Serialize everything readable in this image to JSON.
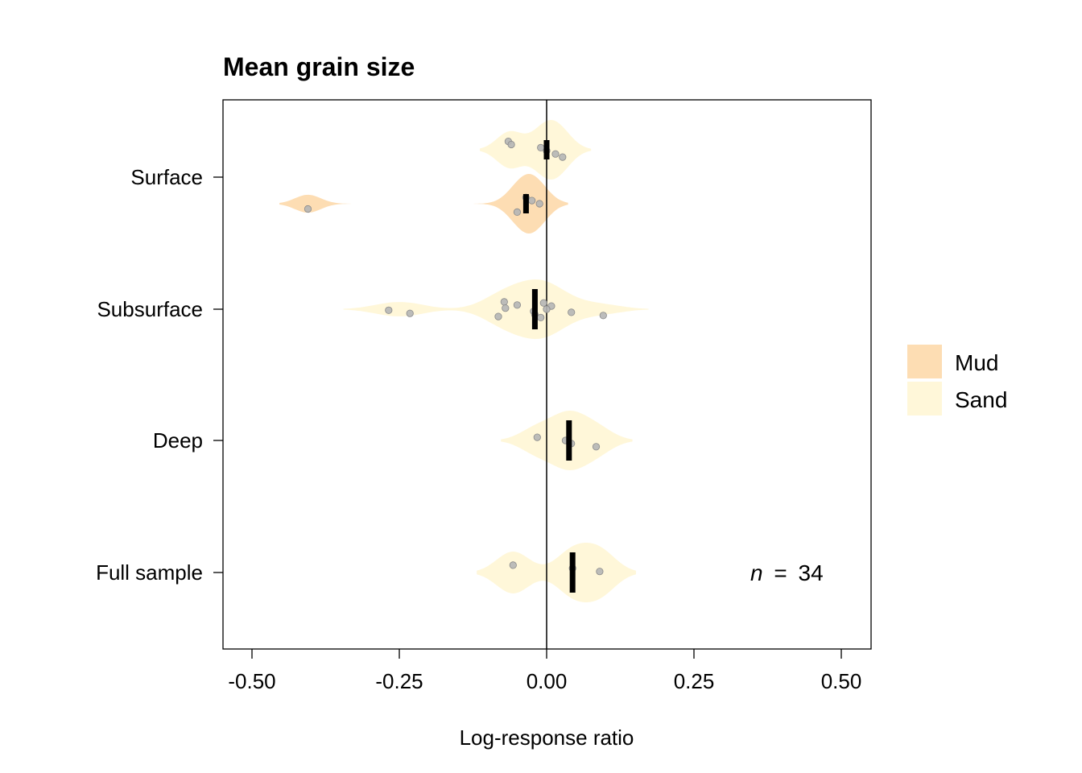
{
  "chart_data": {
    "type": "violin",
    "title": "Mean grain size",
    "xlabel": "Log-response ratio",
    "ylabel": "",
    "xlim": [
      -0.55,
      0.55
    ],
    "xticks": [
      -0.5,
      -0.25,
      0.0,
      0.25,
      0.5
    ],
    "xtick_labels": [
      "-0.50",
      "-0.25",
      "0.00",
      "0.25",
      "0.50"
    ],
    "categories": [
      "Surface",
      "Subsurface",
      "Deep",
      "Full sample"
    ],
    "legend": {
      "position": "right",
      "items": [
        {
          "name": "Mud",
          "color": "#FDDDB3"
        },
        {
          "name": "Sand",
          "color": "#FFF7D9"
        }
      ]
    },
    "annotation": {
      "italic": "n",
      "eq": "=",
      "value": "34"
    },
    "groups": [
      {
        "category": "Surface",
        "sediment": "Sand",
        "median": 0.0,
        "points": [
          -0.065,
          -0.06,
          -0.01,
          0.0,
          0.015,
          0.027
        ]
      },
      {
        "category": "Surface",
        "sediment": "Mud",
        "median": -0.035,
        "points": [
          -0.405,
          -0.05,
          -0.035,
          -0.025,
          -0.012
        ]
      },
      {
        "category": "Subsurface",
        "sediment": "Sand",
        "median": -0.02,
        "points": [
          -0.268,
          -0.232,
          -0.082,
          -0.072,
          -0.05,
          -0.07,
          -0.022,
          -0.02,
          -0.01,
          -0.005,
          0.008,
          0.0,
          0.042,
          0.096
        ]
      },
      {
        "category": "Deep",
        "sediment": "Sand",
        "median": 0.038,
        "points": [
          -0.016,
          0.032,
          0.042,
          0.084
        ]
      },
      {
        "category": "Full sample",
        "sediment": "Sand",
        "median": 0.044,
        "points": [
          -0.057,
          0.044,
          0.09
        ]
      }
    ]
  }
}
